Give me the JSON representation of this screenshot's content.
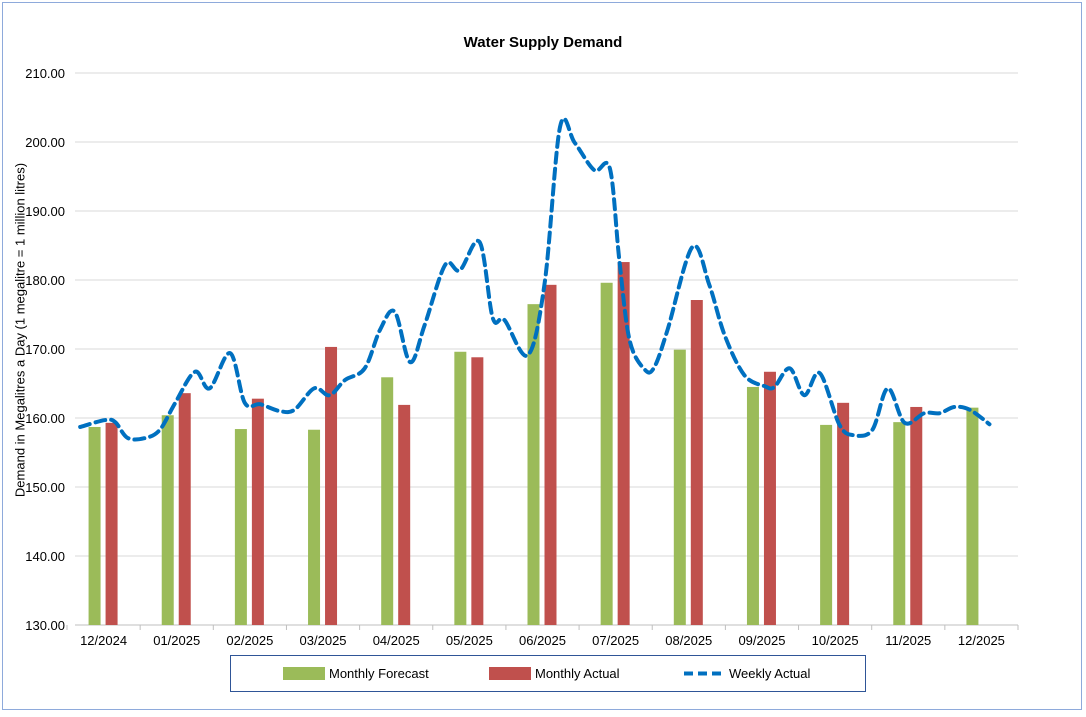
{
  "chart_data": {
    "type": "bar+line",
    "title": "Water Supply Demand",
    "ylabel": "Demand in Megalitres a Day (1 megalitre = 1 million litres)",
    "xlabel": "",
    "ylim": [
      130,
      210
    ],
    "yticks": [
      "130.00",
      "140.00",
      "150.00",
      "160.00",
      "170.00",
      "180.00",
      "190.00",
      "200.00",
      "210.00"
    ],
    "grid": true,
    "legend_position": "bottom",
    "categories": [
      "12/2024",
      "01/2025",
      "02/2025",
      "03/2025",
      "04/2025",
      "05/2025",
      "06/2025",
      "07/2025",
      "08/2025",
      "09/2025",
      "10/2025",
      "11/2025",
      "12/2025"
    ],
    "series": [
      {
        "name": "Monthly Forecast",
        "type": "bar",
        "color": "#9bbb59",
        "values": [
          158.7,
          160.4,
          158.4,
          158.3,
          165.9,
          169.6,
          176.5,
          179.6,
          169.9,
          164.5,
          159.0,
          159.4,
          161.5
        ]
      },
      {
        "name": "Monthly Actual",
        "type": "bar",
        "color": "#c0504d",
        "values": [
          159.3,
          163.6,
          162.8,
          170.3,
          161.9,
          168.8,
          179.3,
          182.6,
          177.1,
          166.7,
          162.2,
          161.6,
          null
        ]
      },
      {
        "name": "Weekly Actual",
        "type": "line-dashed",
        "color": "#0070c0",
        "x": [
          -0.32,
          0.02,
          0.16,
          0.33,
          0.57,
          0.77,
          0.98,
          1.25,
          1.45,
          1.73,
          1.93,
          2.14,
          2.41,
          2.61,
          2.88,
          3.09,
          3.3,
          3.57,
          3.78,
          3.98,
          4.19,
          4.39,
          4.67,
          4.87,
          5.14,
          5.32,
          5.48,
          5.8,
          6.03,
          6.24,
          6.44,
          6.71,
          6.92,
          7.05,
          7.19,
          7.4,
          7.53,
          7.71,
          8.05,
          8.28,
          8.49,
          8.76,
          9.04,
          9.17,
          9.38,
          9.58,
          9.79,
          10.06,
          10.26,
          10.51,
          10.72,
          10.95,
          11.22,
          11.43,
          11.63,
          11.84,
          12.11
        ],
        "values": [
          158.7,
          159.7,
          159.4,
          157.1,
          157.1,
          158.3,
          162.2,
          166.7,
          164.3,
          169.4,
          162.2,
          162.0,
          161.0,
          161.2,
          164.3,
          163.3,
          165.5,
          167.2,
          172.8,
          175.4,
          168.1,
          173.5,
          182.2,
          181.4,
          185.5,
          174.5,
          174.2,
          169.1,
          179.6,
          202.2,
          199.9,
          195.9,
          196.2,
          182.9,
          171.3,
          167.0,
          167.4,
          172.8,
          184.8,
          179.3,
          172.0,
          166.2,
          164.6,
          164.5,
          167.2,
          163.3,
          166.5,
          159.0,
          157.5,
          158.3,
          164.3,
          159.3,
          160.7,
          160.7,
          161.6,
          161.2,
          159.1
        ]
      }
    ]
  }
}
